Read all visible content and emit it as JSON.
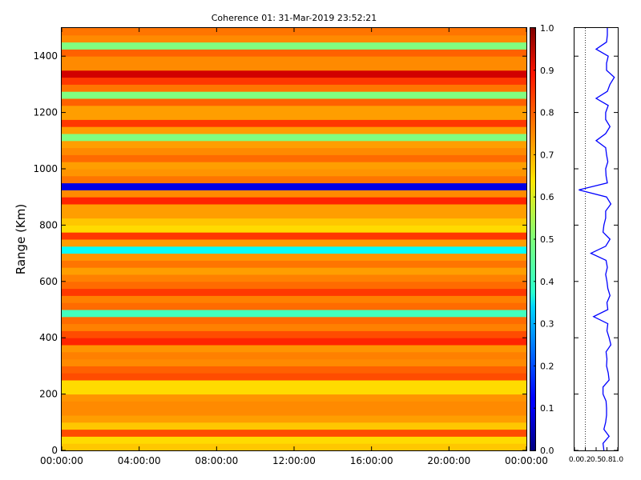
{
  "chart_data": [
    {
      "type": "heatmap",
      "title": "Coherence 01: 31-Mar-2019 23:52:21",
      "ylabel": "Range (Km)",
      "xlabel": "",
      "x_tick_labels": [
        "00:00:00",
        "04:00:00",
        "08:00:00",
        "12:00:00",
        "16:00:00",
        "20:00:00",
        "00:00:00"
      ],
      "xlim_hours": [
        0,
        24
      ],
      "y_ticks": [
        0,
        200,
        400,
        600,
        800,
        1000,
        1200,
        1400
      ],
      "ylim": [
        0,
        1500
      ],
      "colormap": "jet",
      "colorbar_ticks": [
        "0.0",
        "0.1",
        "0.2",
        "0.3",
        "0.4",
        "0.5",
        "0.6",
        "0.7",
        "0.8",
        "0.9",
        "1.0"
      ],
      "clim": [
        0,
        1
      ],
      "grid": false,
      "range_profile": {
        "ranges_km": [
          0,
          25,
          50,
          75,
          100,
          125,
          150,
          175,
          200,
          225,
          250,
          275,
          300,
          325,
          350,
          375,
          400,
          425,
          450,
          475,
          500,
          525,
          550,
          575,
          600,
          625,
          650,
          675,
          700,
          725,
          750,
          775,
          800,
          825,
          850,
          875,
          900,
          925,
          950,
          975,
          1000,
          1025,
          1050,
          1075,
          1100,
          1125,
          1150,
          1175,
          1200,
          1225,
          1250,
          1275,
          1300,
          1325,
          1350,
          1375,
          1400,
          1425,
          1450,
          1475,
          1500
        ],
        "coherence": [
          0.68,
          0.66,
          0.8,
          0.68,
          0.72,
          0.74,
          0.74,
          0.73,
          0.66,
          0.66,
          0.8,
          0.78,
          0.74,
          0.75,
          0.73,
          0.84,
          0.8,
          0.75,
          0.77,
          0.44,
          0.77,
          0.75,
          0.82,
          0.77,
          0.75,
          0.72,
          0.76,
          0.73,
          0.38,
          0.72,
          0.82,
          0.66,
          0.68,
          0.72,
          0.72,
          0.84,
          0.74,
          0.1,
          0.76,
          0.73,
          0.72,
          0.77,
          0.74,
          0.72,
          0.5,
          0.72,
          0.82,
          0.72,
          0.72,
          0.78,
          0.5,
          0.76,
          0.82,
          0.92,
          0.74,
          0.74,
          0.78,
          0.5,
          0.74,
          0.76,
          0.76
        ]
      }
    },
    {
      "type": "line",
      "x_tick_labels": [
        "0.0",
        "0.2",
        "0.5",
        "0.8",
        "1.0"
      ],
      "x_ticks": [
        0,
        0.25,
        0.5,
        0.75,
        1.0
      ],
      "xlim": [
        0,
        1
      ],
      "ylim": [
        0,
        1500
      ],
      "series_color": "#0000ff",
      "ref_line_x": 0.25
    }
  ]
}
